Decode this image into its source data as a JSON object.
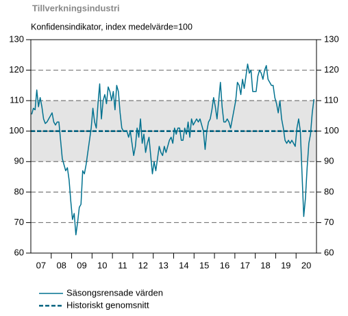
{
  "chart_data": {
    "type": "line",
    "title": "Tillverkningsindustri",
    "subtitle": "Konfidensindikator, index medelvärde=100",
    "series": [
      {
        "name": "Säsongsrensade värden",
        "color": "#00718f",
        "values": [
          105.5,
          107.5,
          107,
          113.5,
          108,
          111,
          108,
          104,
          102.5,
          103,
          104,
          105,
          106,
          103,
          102,
          103,
          103,
          97,
          91,
          89,
          87,
          88,
          84,
          77,
          71,
          73,
          66,
          70,
          75,
          76,
          87,
          86,
          89,
          93,
          97,
          101,
          107.5,
          103,
          101,
          109,
          115.5,
          104,
          110,
          112,
          109,
          114.5,
          113,
          110,
          113,
          107,
          115,
          113,
          106,
          101,
          100,
          100,
          100,
          98,
          100,
          96,
          92,
          95,
          101,
          98,
          104,
          96,
          99,
          93,
          96,
          98,
          92,
          86,
          90,
          87,
          91,
          95,
          93,
          92,
          95,
          93,
          95,
          97,
          98,
          96,
          101,
          99,
          101,
          101,
          97,
          97,
          101,
          99,
          103,
          98,
          104,
          102,
          103,
          104,
          103,
          104,
          102,
          100,
          94,
          100,
          103,
          104,
          107,
          111,
          108,
          104,
          110,
          116,
          108,
          103,
          103,
          104,
          103,
          101,
          104,
          107,
          110,
          116,
          115,
          112,
          117,
          114,
          118,
          122,
          119,
          120,
          113,
          113,
          113,
          118,
          120,
          119,
          117,
          120,
          121.5,
          117,
          116,
          115,
          115,
          111,
          109,
          106,
          110,
          104,
          101,
          97,
          96,
          97,
          96,
          97,
          96,
          95,
          101,
          104,
          100,
          86,
          72,
          78,
          88,
          96,
          99,
          106,
          110.5
        ]
      }
    ],
    "reference_lines": [
      {
        "name": "Historiskt genomsnitt",
        "value": 100,
        "color": "#00607e"
      }
    ],
    "band": [
      90,
      110
    ],
    "band_color": "#e4e4e4",
    "xlim": [
      0,
      168
    ],
    "xticks": [
      {
        "value": 6,
        "label": "07"
      },
      {
        "value": 18,
        "label": "08"
      },
      {
        "value": 30,
        "label": "09"
      },
      {
        "value": 42,
        "label": "10"
      },
      {
        "value": 54,
        "label": "11"
      },
      {
        "value": 66,
        "label": "12"
      },
      {
        "value": 78,
        "label": "13"
      },
      {
        "value": 90,
        "label": "14"
      },
      {
        "value": 102,
        "label": "15"
      },
      {
        "value": 114,
        "label": "16"
      },
      {
        "value": 126,
        "label": "17"
      },
      {
        "value": 138,
        "label": "18"
      },
      {
        "value": 150,
        "label": "19"
      },
      {
        "value": 162,
        "label": "20"
      }
    ],
    "ylim": [
      60,
      130
    ],
    "yticks": [
      60,
      70,
      80,
      90,
      100,
      110,
      120,
      130
    ],
    "y2lim": [
      60,
      130
    ],
    "y2ticks": [
      60,
      70,
      80,
      90,
      100,
      110,
      120,
      130
    ],
    "grid": true
  }
}
